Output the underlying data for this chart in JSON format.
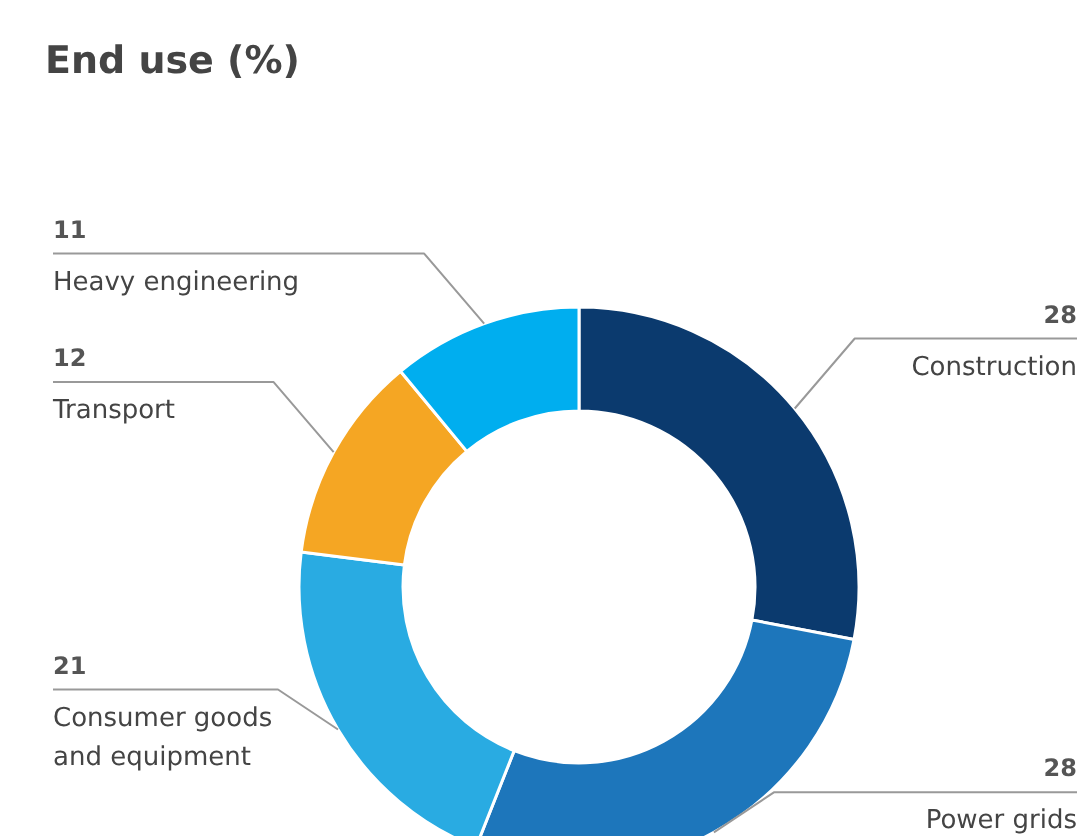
{
  "chart_data": {
    "type": "donut",
    "title": "End use (%)",
    "categories": [
      "Construction",
      "Power grids",
      "Consumer goods\nand equipment",
      "Transport",
      "Heavy engineering"
    ],
    "values": [
      28,
      28,
      21,
      12,
      11
    ],
    "colors": [
      "#0b3a6e",
      "#1d76bb",
      "#29abe2",
      "#f5a623",
      "#00aeef"
    ],
    "data_labels": true
  }
}
